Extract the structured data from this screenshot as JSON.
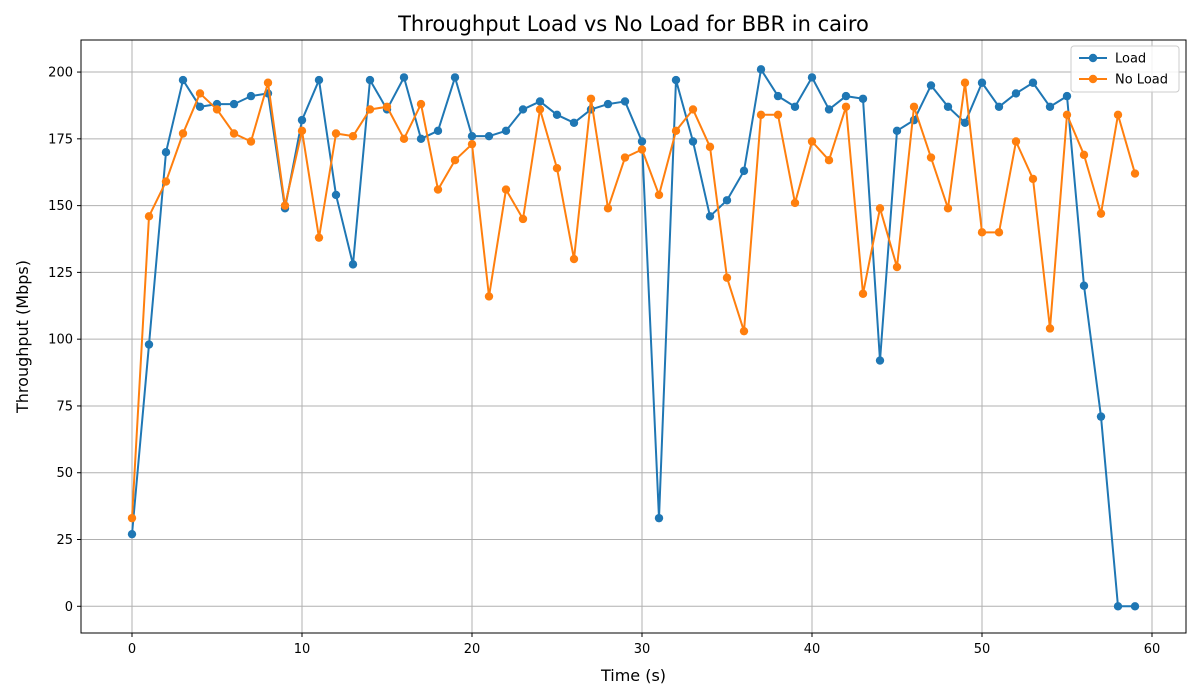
{
  "chart_data": {
    "type": "line",
    "title": "Throughput Load vs No Load for BBR in cairo",
    "xlabel": "Time (s)",
    "ylabel": "Throughput (Mbps)",
    "xlim": [
      -3,
      62
    ],
    "ylim": [
      -10,
      212
    ],
    "xticks": [
      0,
      10,
      20,
      30,
      40,
      50,
      60
    ],
    "yticks": [
      0,
      25,
      50,
      75,
      100,
      125,
      150,
      175,
      200
    ],
    "grid": true,
    "legend_position": "top-right",
    "x": [
      0,
      1,
      2,
      3,
      4,
      5,
      6,
      7,
      8,
      9,
      10,
      11,
      12,
      13,
      14,
      15,
      16,
      17,
      18,
      19,
      20,
      21,
      22,
      23,
      24,
      25,
      26,
      27,
      28,
      29,
      30,
      31,
      32,
      33,
      34,
      35,
      36,
      37,
      38,
      39,
      40,
      41,
      42,
      43,
      44,
      45,
      46,
      47,
      48,
      49,
      50,
      51,
      52,
      53,
      54,
      55,
      56,
      57,
      58,
      59
    ],
    "series": [
      {
        "name": "Load",
        "color": "#1f77b4",
        "values": [
          27,
          98,
          170,
          197,
          187,
          188,
          188,
          191,
          192,
          149,
          182,
          197,
          154,
          128,
          197,
          186,
          198,
          175,
          178,
          198,
          176,
          176,
          178,
          186,
          189,
          184,
          181,
          186,
          188,
          189,
          174,
          33,
          197,
          174,
          146,
          152,
          163,
          201,
          191,
          187,
          198,
          186,
          191,
          190,
          92,
          178,
          182,
          195,
          187,
          181,
          196,
          187,
          192,
          196,
          187,
          191,
          120,
          71,
          0,
          0
        ]
      },
      {
        "name": "No Load",
        "color": "#ff7f0e",
        "values": [
          33,
          146,
          159,
          177,
          192,
          186,
          177,
          174,
          196,
          150,
          178,
          138,
          177,
          176,
          186,
          187,
          175,
          188,
          156,
          167,
          173,
          116,
          156,
          145,
          186,
          164,
          130,
          190,
          149,
          168,
          171,
          154,
          178,
          186,
          172,
          123,
          103,
          184,
          184,
          151,
          174,
          167,
          187,
          117,
          149,
          127,
          187,
          168,
          149,
          196,
          140,
          140,
          174,
          160,
          104,
          184,
          169,
          147,
          184,
          162
        ]
      }
    ]
  }
}
